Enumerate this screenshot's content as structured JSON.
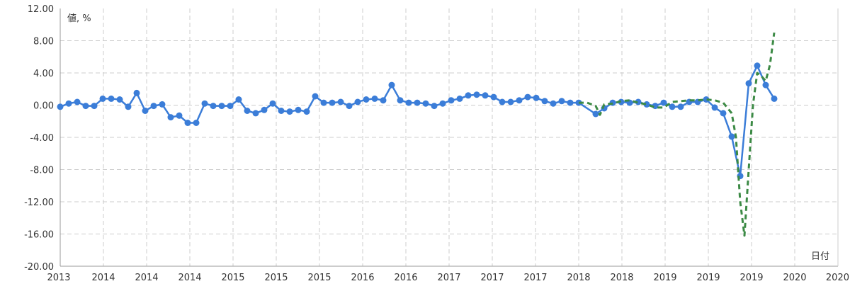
{
  "chart_data": {
    "type": "line",
    "ylabel": "値, %",
    "xlabel": "日付",
    "ylim": [
      -20,
      12
    ],
    "y_ticks": [
      "12.00",
      "8.00",
      "4.00",
      "0.00",
      "-4.00",
      "-8.00",
      "-12.00",
      "-16.00",
      "-20.00"
    ],
    "x_ticks": [
      "2013",
      "2014",
      "2014",
      "2014",
      "2015",
      "2015",
      "2015",
      "2016",
      "2016",
      "2017",
      "2017",
      "2017",
      "2018",
      "2018",
      "2019",
      "2019",
      "2019",
      "2020",
      "2020"
    ],
    "grid": true,
    "x_range": [
      2013.0,
      2020.625
    ],
    "series": [
      {
        "color": "#3b7dd8",
        "style": "solid-with-markers",
        "points": [
          [
            2013.0,
            -0.2
          ],
          [
            2013.083,
            0.2
          ],
          [
            2013.167,
            0.4
          ],
          [
            2013.25,
            -0.1
          ],
          [
            2013.333,
            -0.1
          ],
          [
            2013.417,
            0.8
          ],
          [
            2013.5,
            0.8
          ],
          [
            2013.583,
            0.7
          ],
          [
            2013.667,
            -0.2
          ],
          [
            2013.75,
            1.5
          ],
          [
            2013.833,
            -0.7
          ],
          [
            2013.917,
            -0.1
          ],
          [
            2014.0,
            0.1
          ],
          [
            2014.083,
            -1.5
          ],
          [
            2014.167,
            -1.3
          ],
          [
            2014.25,
            -2.2
          ],
          [
            2014.333,
            -2.2
          ],
          [
            2014.417,
            0.2
          ],
          [
            2014.5,
            -0.1
          ],
          [
            2014.583,
            -0.1
          ],
          [
            2014.667,
            -0.1
          ],
          [
            2014.75,
            0.7
          ],
          [
            2014.833,
            -0.7
          ],
          [
            2014.917,
            -1.0
          ],
          [
            2015.0,
            -0.6
          ],
          [
            2015.083,
            0.2
          ],
          [
            2015.167,
            -0.7
          ],
          [
            2015.25,
            -0.8
          ],
          [
            2015.333,
            -0.6
          ],
          [
            2015.417,
            -0.8
          ],
          [
            2015.5,
            1.1
          ],
          [
            2015.583,
            0.3
          ],
          [
            2015.667,
            0.3
          ],
          [
            2015.75,
            0.4
          ],
          [
            2015.833,
            -0.1
          ],
          [
            2015.917,
            0.4
          ],
          [
            2016.0,
            0.7
          ],
          [
            2016.083,
            0.8
          ],
          [
            2016.167,
            0.6
          ],
          [
            2016.25,
            2.5
          ],
          [
            2016.333,
            0.6
          ],
          [
            2016.417,
            0.3
          ],
          [
            2016.5,
            0.3
          ],
          [
            2016.583,
            0.2
          ],
          [
            2016.667,
            -0.1
          ],
          [
            2016.75,
            0.2
          ],
          [
            2016.833,
            0.6
          ],
          [
            2016.917,
            0.8
          ],
          [
            2017.0,
            1.2
          ],
          [
            2017.083,
            1.3
          ],
          [
            2017.167,
            1.2
          ],
          [
            2017.25,
            1.0
          ],
          [
            2017.333,
            0.4
          ],
          [
            2017.417,
            0.4
          ],
          [
            2017.5,
            0.6
          ],
          [
            2017.583,
            1.0
          ],
          [
            2017.667,
            0.9
          ],
          [
            2017.75,
            0.5
          ],
          [
            2017.833,
            0.2
          ],
          [
            2017.917,
            0.5
          ],
          [
            2018.0,
            0.3
          ],
          [
            2018.083,
            0.3
          ],
          [
            2018.25,
            -1.1
          ],
          [
            2018.333,
            -0.4
          ],
          [
            2018.417,
            0.3
          ],
          [
            2018.5,
            0.4
          ],
          [
            2018.583,
            0.3
          ],
          [
            2018.667,
            0.4
          ],
          [
            2018.75,
            0.1
          ],
          [
            2018.833,
            -0.1
          ],
          [
            2018.917,
            0.3
          ],
          [
            2019.0,
            -0.2
          ],
          [
            2019.083,
            -0.2
          ],
          [
            2019.167,
            0.4
          ],
          [
            2019.25,
            0.4
          ],
          [
            2019.333,
            0.7
          ],
          [
            2019.417,
            -0.3
          ],
          [
            2019.5,
            -1.0
          ],
          [
            2019.583,
            -3.9
          ],
          [
            2019.667,
            -8.8
          ],
          [
            2019.75,
            2.7
          ],
          [
            2019.833,
            4.9
          ],
          [
            2019.917,
            2.5
          ],
          [
            2020.0,
            0.8
          ]
        ]
      },
      {
        "color": "#3c8a45",
        "style": "dashed",
        "points": [
          [
            2018.083,
            0.3
          ],
          [
            2018.167,
            0.3
          ],
          [
            2018.25,
            -0.1
          ],
          [
            2018.292,
            -1.2
          ],
          [
            2018.333,
            0.1
          ],
          [
            2018.417,
            0.2
          ],
          [
            2018.5,
            0.5
          ],
          [
            2018.583,
            0.6
          ],
          [
            2018.667,
            0.3
          ],
          [
            2018.75,
            0.1
          ],
          [
            2018.833,
            -0.3
          ],
          [
            2018.917,
            -0.3
          ],
          [
            2019.0,
            0.4
          ],
          [
            2019.083,
            0.5
          ],
          [
            2019.167,
            0.6
          ],
          [
            2019.25,
            0.6
          ],
          [
            2019.333,
            0.7
          ],
          [
            2019.417,
            0.6
          ],
          [
            2019.5,
            0.3
          ],
          [
            2019.583,
            -1.0
          ],
          [
            2019.625,
            -4.0
          ],
          [
            2019.667,
            -12.0
          ],
          [
            2019.708,
            -16.2
          ],
          [
            2019.75,
            -8.0
          ],
          [
            2019.792,
            0.0
          ],
          [
            2019.833,
            4.0
          ],
          [
            2019.875,
            3.6
          ],
          [
            2019.917,
            3.0
          ],
          [
            2019.958,
            5.0
          ],
          [
            2020.0,
            9.0
          ]
        ]
      }
    ]
  }
}
